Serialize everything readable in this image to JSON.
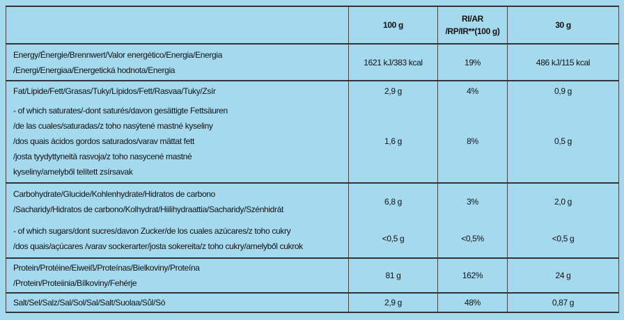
{
  "header": {
    "per_100g": "100 g",
    "ri": [
      "RI/AR",
      "/RP/IR**(100 g)"
    ],
    "per_30g": "30 g"
  },
  "sections": [
    {
      "rows": [
        {
          "label": [
            "Energy/Énergie/Brennwert/Valor energético/Energia/Energia",
            "/Energi/Energiaa/Energetická hodnota/Energia"
          ],
          "per_100g": "1621 kJ/383 kcal",
          "ri": "19%",
          "per_30g": "486 kJ/115 kcal"
        }
      ]
    },
    {
      "rows": [
        {
          "label": [
            "Fat/Lipide/Fett/Grasas/Tuky/Lípidos/Fett/Rasvaa/Tuky/Zsír"
          ],
          "per_100g": "2,9 g",
          "ri": "4%",
          "per_30g": "0,9 g"
        },
        {
          "label": [
            "- of which saturates/-dont saturés/davon gesättigte Fettsäuren",
            "/de las cuales/saturadas/z toho nasýtené mastné kyseliny",
            "/dos quais ácidos gordos saturados/varav mättat fett",
            "/josta tyydyttyneitä rasvoja/z toho nasycené mastné",
            "kyseliny/amelyből telített zsírsavak"
          ],
          "per_100g": "1,6 g",
          "ri": "8%",
          "per_30g": "0,5 g"
        }
      ]
    },
    {
      "rows": [
        {
          "label": [
            "Carbohydrate/Glucide/Kohlenhydrate/Hidratos de carbono",
            "/Sacharidy/Hidratos de carbono/Kolhydrat/Hiilihydraattia/Sacharidy/Szénhidrát"
          ],
          "per_100g": "6,8 g",
          "ri": "3%",
          "per_30g": "2,0 g"
        },
        {
          "label": [
            "- of which sugars/dont sucres/davon Zucker/de los cuales azúcares/z toho cukry",
            "/dos quais/açúcares /varav sockerarter/josta sokereita/z toho cukry/amelyből cukrok"
          ],
          "per_100g": "<0,5 g",
          "ri": "<0,5%",
          "per_30g": "<0,5 g"
        }
      ]
    },
    {
      "rows": [
        {
          "label": [
            "Protein/Protéine/Eiweiß/Proteínas/Bielkoviny/Proteína",
            "/Protein/Proteiinia/Bílkoviny/Fehérje"
          ],
          "per_100g": "81 g",
          "ri": "162%",
          "per_30g": "24 g"
        }
      ]
    },
    {
      "rows": [
        {
          "label": [
            "Salt/Sel/Salz/Sal/Sol/Sal/Salt/Suolaa/Sůl/Só"
          ],
          "per_100g": "2,9 g",
          "ri": "48%",
          "per_30g": "0,87 g"
        }
      ]
    }
  ]
}
